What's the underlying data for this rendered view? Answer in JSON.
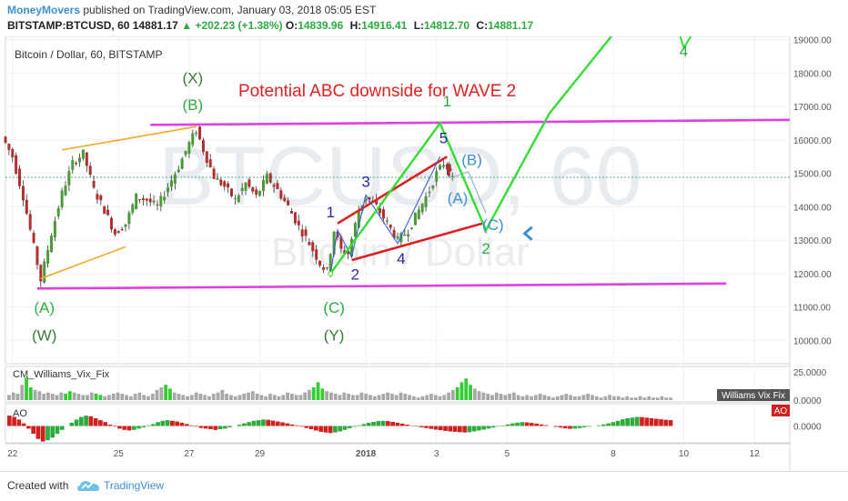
{
  "header": {
    "author": "MoneyMovers",
    "published_text": "published on TradingView.com, January 03, 2018 05:05 EST",
    "symbol": "BITSTAMP:BTCUSD, 60",
    "last_price": "14881.17",
    "change": "+202.23 (+1.38%)",
    "ohlc": [
      {
        "key": "O:",
        "value": "14839.96"
      },
      {
        "key": "H:",
        "value": "14916.41"
      },
      {
        "key": "L:",
        "value": "14812.70"
      },
      {
        "key": "C:",
        "value": "14881.17"
      }
    ]
  },
  "chart_data": {
    "type": "line",
    "title": "Bitcoin / Dollar, 60, BITSTAMP",
    "watermark": {
      "symbol": "BTCUSD, 60",
      "name": "Bitcoin / Dollar"
    },
    "annotation": "Potential ABC downside for WAVE 2",
    "y_ticks": [
      "19000.00",
      "18000.00",
      "17000.00",
      "16000.00",
      "15000.00",
      "14000.00",
      "13000.00",
      "12000.00",
      "11000.00",
      "10000.00"
    ],
    "ylim": [
      9300,
      19100
    ],
    "x_ticks": [
      {
        "label": "22",
        "day": 22
      },
      {
        "label": "25",
        "day": 25
      },
      {
        "label": "27",
        "day": 27
      },
      {
        "label": "29",
        "day": 29
      },
      {
        "label": "2018",
        "day": 32
      },
      {
        "label": "3",
        "day": 34
      },
      {
        "label": "5",
        "day": 36
      },
      {
        "label": "8",
        "day": 39
      },
      {
        "label": "10",
        "day": 41
      },
      {
        "label": "12",
        "day": 43
      }
    ],
    "xlim": [
      21.8,
      44.0
    ],
    "last_price_line": 14881.17,
    "price_series": [
      {
        "day": 21.8,
        "price": 16100
      },
      {
        "day": 22.1,
        "price": 15500
      },
      {
        "day": 22.4,
        "price": 14300
      },
      {
        "day": 22.7,
        "price": 12800
      },
      {
        "day": 22.9,
        "price": 11800
      },
      {
        "day": 23.2,
        "price": 13200
      },
      {
        "day": 23.5,
        "price": 14400
      },
      {
        "day": 23.8,
        "price": 15300
      },
      {
        "day": 24.1,
        "price": 15600
      },
      {
        "day": 24.4,
        "price": 14500
      },
      {
        "day": 24.7,
        "price": 13900
      },
      {
        "day": 25.0,
        "price": 13200
      },
      {
        "day": 25.3,
        "price": 13500
      },
      {
        "day": 25.6,
        "price": 14300
      },
      {
        "day": 25.9,
        "price": 14200
      },
      {
        "day": 26.2,
        "price": 14000
      },
      {
        "day": 26.5,
        "price": 14600
      },
      {
        "day": 26.8,
        "price": 15200
      },
      {
        "day": 27.1,
        "price": 15900
      },
      {
        "day": 27.3,
        "price": 16300
      },
      {
        "day": 27.5,
        "price": 15700
      },
      {
        "day": 27.8,
        "price": 14900
      },
      {
        "day": 28.1,
        "price": 14600
      },
      {
        "day": 28.4,
        "price": 14200
      },
      {
        "day": 28.7,
        "price": 14700
      },
      {
        "day": 29.0,
        "price": 14300
      },
      {
        "day": 29.3,
        "price": 14900
      },
      {
        "day": 29.6,
        "price": 14500
      },
      {
        "day": 29.9,
        "price": 14000
      },
      {
        "day": 30.2,
        "price": 13400
      },
      {
        "day": 30.5,
        "price": 12900
      },
      {
        "day": 30.8,
        "price": 12300
      },
      {
        "day": 31.0,
        "price": 12050
      },
      {
        "day": 31.2,
        "price": 13300
      },
      {
        "day": 31.4,
        "price": 12700
      },
      {
        "day": 31.6,
        "price": 12600
      },
      {
        "day": 31.9,
        "price": 13900
      },
      {
        "day": 32.1,
        "price": 14300
      },
      {
        "day": 32.4,
        "price": 14000
      },
      {
        "day": 32.7,
        "price": 13500
      },
      {
        "day": 33.0,
        "price": 13000
      },
      {
        "day": 33.3,
        "price": 13300
      },
      {
        "day": 33.6,
        "price": 13900
      },
      {
        "day": 33.9,
        "price": 14500
      },
      {
        "day": 34.1,
        "price": 15000
      },
      {
        "day": 34.3,
        "price": 15300
      },
      {
        "day": 34.4,
        "price": 15050
      },
      {
        "day": 34.5,
        "price": 14880
      }
    ],
    "trendlines": [
      {
        "name": "upper-resistance",
        "color": "#e040e0",
        "points": [
          [
            25.9,
            16450
          ],
          [
            44.0,
            16600
          ]
        ]
      },
      {
        "name": "lower-support",
        "color": "#e040e0",
        "points": [
          [
            22.7,
            11550
          ],
          [
            42.2,
            11700
          ]
        ]
      },
      {
        "name": "orange-upper",
        "color": "#f5a623",
        "points": [
          [
            23.4,
            15700
          ],
          [
            27.2,
            16400
          ]
        ]
      },
      {
        "name": "orange-lower",
        "color": "#f5a623",
        "points": [
          [
            22.8,
            11850
          ],
          [
            25.2,
            12800
          ]
        ]
      },
      {
        "name": "red-channel-upper",
        "color": "#e02020",
        "points": [
          [
            31.2,
            13500
          ],
          [
            34.3,
            15500
          ]
        ]
      },
      {
        "name": "red-channel-lower",
        "color": "#e02020",
        "points": [
          [
            31.6,
            12400
          ],
          [
            35.3,
            13500
          ]
        ]
      },
      {
        "name": "blue-wave-1-2",
        "color": "#3b5bd4",
        "points": [
          [
            31.0,
            12000
          ],
          [
            31.2,
            13300
          ],
          [
            31.6,
            12500
          ],
          [
            32.0,
            14350
          ],
          [
            32.9,
            12900
          ],
          [
            34.1,
            15500
          ]
        ]
      },
      {
        "name": "blue-correction",
        "color": "#88aadd",
        "points": [
          [
            34.5,
            14900
          ],
          [
            34.9,
            15050
          ],
          [
            35.4,
            13800
          ]
        ]
      }
    ],
    "projection": {
      "color": "#33dd33",
      "points": [
        [
          31.0,
          12000
        ],
        [
          34.1,
          16500
        ],
        [
          35.4,
          13300
        ],
        [
          37.2,
          16800
        ],
        [
          39.1,
          19300
        ]
      ]
    },
    "wave_labels": [
      {
        "text": "(X)",
        "day": 27.1,
        "price": 17700,
        "color": "#3a7a3a"
      },
      {
        "text": "(B)",
        "day": 27.1,
        "price": 16900,
        "color": "#2eab3f"
      },
      {
        "text": "(A)",
        "day": 22.9,
        "price": 10820,
        "color": "#2eab3f"
      },
      {
        "text": "(W)",
        "day": 22.9,
        "price": 10000,
        "color": "#3a7a3a"
      },
      {
        "text": "(C)",
        "day": 31.1,
        "price": 10820,
        "color": "#2eab3f"
      },
      {
        "text": "(Y)",
        "day": 31.1,
        "price": 10000,
        "color": "#3a7a3a"
      },
      {
        "text": "1",
        "day": 34.3,
        "price": 17000,
        "color": "#2eab3f"
      },
      {
        "text": "2",
        "day": 35.4,
        "price": 12600,
        "color": "#2eab3f"
      },
      {
        "text": "4",
        "day": 41.0,
        "price": 18500,
        "color": "#2eab3f"
      },
      {
        "text": "1",
        "day": 31.0,
        "price": 13680,
        "color": "#2b2b9b"
      },
      {
        "text": "2",
        "day": 31.7,
        "price": 11820,
        "color": "#2b2b9b"
      },
      {
        "text": "3",
        "day": 32.0,
        "price": 14600,
        "color": "#2b2b9b"
      },
      {
        "text": "4",
        "day": 33.0,
        "price": 12300,
        "color": "#2b2b9b"
      },
      {
        "text": "5",
        "day": 34.2,
        "price": 15900,
        "color": "#2b2b9b"
      },
      {
        "text": "(B)",
        "day": 35.0,
        "price": 15250,
        "color": "#3b8fd4"
      },
      {
        "text": "(A)",
        "day": 34.6,
        "price": 14100,
        "color": "#3b8fd4"
      },
      {
        "text": "(C)",
        "day": 35.6,
        "price": 13300,
        "color": "#3b8fd4"
      }
    ],
    "williams_vix_fix": {
      "label": "CM_Williams_Vix_Fix",
      "tag": "Williams Vix Fix",
      "y_ticks": [
        "25.0000",
        "0.0000"
      ],
      "values": [
        4,
        6,
        5,
        12,
        18,
        10,
        8,
        7,
        5,
        6,
        5,
        4,
        6,
        5,
        7,
        6,
        5,
        4,
        4,
        6,
        5,
        4,
        3,
        4,
        5,
        6,
        5,
        4,
        3,
        5,
        6,
        4,
        3,
        5,
        8,
        10,
        12,
        9,
        6,
        5,
        4,
        3,
        4,
        6,
        5,
        4,
        3,
        5,
        6,
        8,
        5,
        4,
        3,
        4,
        5,
        6,
        7,
        5,
        4,
        3,
        5,
        4,
        3,
        4,
        6,
        5,
        4,
        4,
        6,
        8,
        10,
        14,
        9,
        7,
        6,
        5,
        4,
        6,
        5,
        4,
        4,
        6,
        5,
        4,
        3,
        4,
        5,
        6,
        5,
        4,
        6,
        5,
        4,
        3,
        2,
        3,
        4,
        5,
        4,
        3,
        4,
        6,
        8,
        10,
        14,
        17,
        12,
        9,
        7,
        6,
        5,
        4,
        6,
        5,
        4,
        5,
        6,
        4,
        3,
        4,
        3,
        4,
        5,
        4,
        3,
        2,
        3,
        4,
        5,
        4,
        3,
        3,
        4,
        5,
        4,
        3,
        2,
        3,
        4,
        3,
        3,
        2,
        3,
        2,
        2,
        3,
        2,
        3,
        2,
        2,
        3,
        2,
        2
      ],
      "highlight": [
        4,
        5,
        13,
        14,
        20,
        21,
        36,
        37,
        70,
        71,
        72,
        103,
        104,
        105,
        106
      ]
    },
    "ao": {
      "label": "AO",
      "tag": "AO",
      "y_ticks": [
        "0.0000"
      ],
      "values": [
        800,
        700,
        500,
        200,
        -200,
        -600,
        -1000,
        -1200,
        -1100,
        -900,
        -600,
        -300,
        0,
        250,
        500,
        700,
        800,
        750,
        600,
        450,
        300,
        100,
        -50,
        -200,
        -300,
        -350,
        -300,
        -200,
        -100,
        50,
        150,
        300,
        400,
        450,
        400,
        350,
        250,
        150,
        50,
        -50,
        -150,
        -200,
        -250,
        -300,
        -250,
        -200,
        -100,
        0,
        100,
        200,
        300,
        400,
        450,
        500,
        480,
        420,
        350,
        280,
        200,
        120,
        50,
        -50,
        -150,
        -250,
        -350,
        -450,
        -500,
        -550,
        -500,
        -420,
        -300,
        -180,
        -60,
        50,
        150,
        250,
        320,
        380,
        400,
        380,
        320,
        250,
        180,
        100,
        30,
        -40,
        -100,
        -160,
        -220,
        -280,
        -320,
        -380,
        -420,
        -450,
        -480,
        -500,
        -480,
        -420,
        -350,
        -280,
        -200,
        -120,
        -40,
        40,
        120,
        200,
        260,
        300,
        280,
        240,
        180,
        120,
        60,
        0,
        -60,
        -120,
        -180,
        -220,
        -200,
        -160,
        -100,
        -50,
        0,
        50,
        120,
        200,
        300,
        400,
        520,
        600,
        650,
        700,
        690,
        650,
        600,
        560,
        520,
        480,
        450
      ]
    }
  },
  "footer": {
    "created_with": "Created with",
    "brand": "TradingView"
  }
}
